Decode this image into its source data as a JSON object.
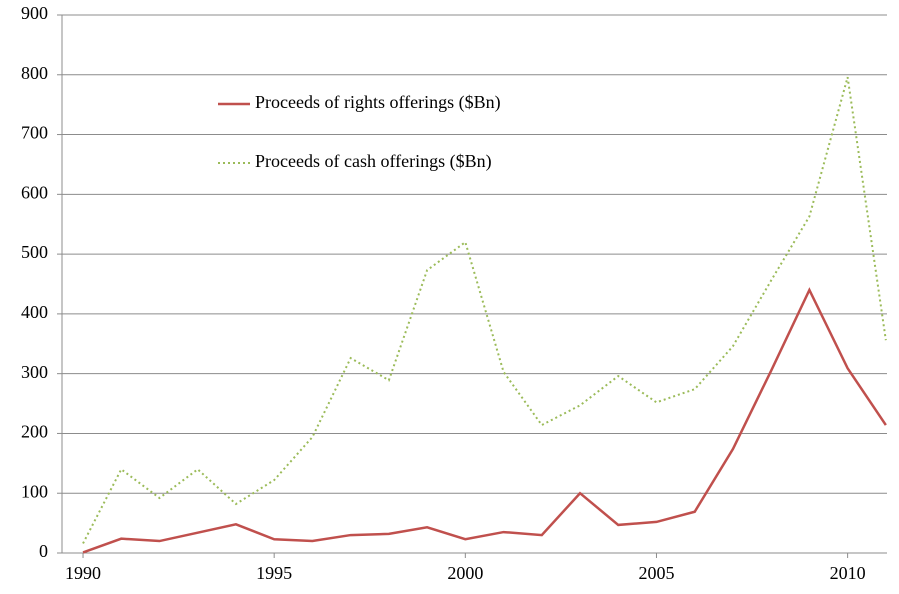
{
  "chart_data": {
    "type": "line",
    "x": [
      1990,
      1991,
      1992,
      1993,
      1994,
      1995,
      1996,
      1997,
      1998,
      1999,
      2000,
      2001,
      2002,
      2003,
      2004,
      2005,
      2006,
      2007,
      2008,
      2009,
      2010,
      2011
    ],
    "series": [
      {
        "name": "Proceeds of rights offerings ($Bn)",
        "color": "#c0504d",
        "dash": "solid",
        "values": [
          1,
          24,
          20,
          34,
          48,
          23,
          20,
          30,
          32,
          43,
          23,
          35,
          30,
          100,
          47,
          52,
          69,
          174,
          305,
          440,
          309,
          214
        ]
      },
      {
        "name": "Proceeds of cash offerings ($Bn)",
        "color": "#9bbb59",
        "dash": "dotted",
        "values": [
          16,
          140,
          92,
          140,
          82,
          122,
          194,
          326,
          289,
          473,
          520,
          303,
          214,
          247,
          296,
          252,
          274,
          346,
          456,
          563,
          796,
          356
        ]
      }
    ],
    "xlim": [
      1989.45,
      2011.03
    ],
    "xticks": [
      1990,
      1995,
      2000,
      2005,
      2010
    ],
    "ylim": [
      0,
      900
    ],
    "yticks": [
      0,
      100,
      200,
      300,
      400,
      500,
      600,
      700,
      800,
      900
    ],
    "grid": true,
    "legend": "top"
  }
}
